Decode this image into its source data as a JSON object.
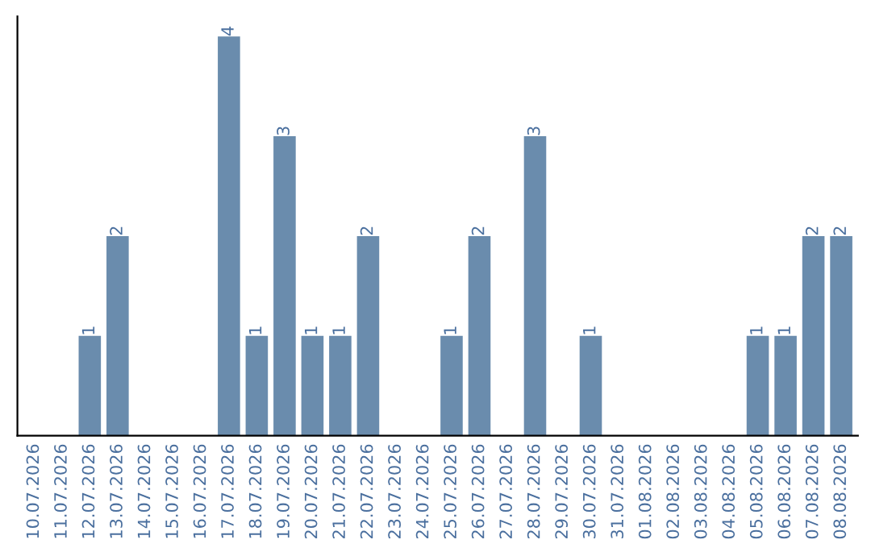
{
  "chart_data": {
    "type": "bar",
    "categories": [
      "10.07.2026",
      "11.07.2026",
      "12.07.2026",
      "13.07.2026",
      "14.07.2026",
      "15.07.2026",
      "16.07.2026",
      "17.07.2026",
      "18.07.2026",
      "19.07.2026",
      "20.07.2026",
      "21.07.2026",
      "22.07.2026",
      "23.07.2026",
      "24.07.2026",
      "25.07.2026",
      "26.07.2026",
      "27.07.2026",
      "28.07.2026",
      "29.07.2026",
      "30.07.2026",
      "31.07.2026",
      "01.08.2026",
      "02.08.2026",
      "03.08.2026",
      "04.08.2026",
      "05.08.2026",
      "06.08.2026",
      "07.08.2026",
      "08.08.2026"
    ],
    "values": [
      0,
      0,
      1,
      2,
      0,
      0,
      0,
      4,
      1,
      3,
      1,
      1,
      2,
      0,
      0,
      1,
      2,
      0,
      3,
      0,
      1,
      0,
      0,
      0,
      0,
      0,
      1,
      1,
      2,
      2
    ],
    "value_labels": [
      null,
      null,
      "1",
      "2",
      null,
      null,
      null,
      "4",
      "1",
      "3",
      "1",
      "1",
      "2",
      null,
      null,
      "1",
      "2",
      null,
      "3",
      null,
      "1",
      null,
      null,
      null,
      null,
      null,
      "1",
      "1",
      "2",
      "2"
    ],
    "color": "#6a8cad",
    "grid": false,
    "legend": false,
    "tick_labels": "x"
  }
}
